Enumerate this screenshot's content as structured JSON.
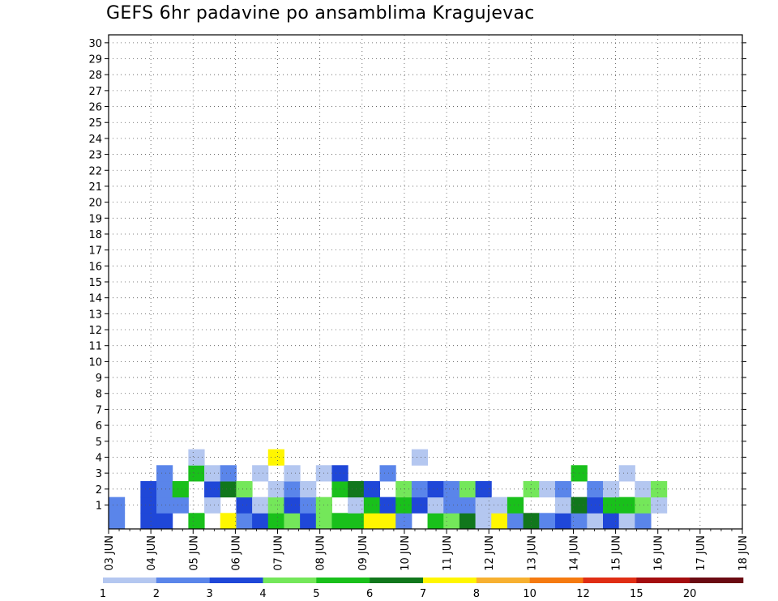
{
  "chart_data": {
    "type": "heatmap",
    "title": "GEFS 6hr padavine po ansamblima Kragujevac",
    "x_ticks": [
      "03 JUN",
      "04 JUN",
      "05 JUN",
      "06 JUN",
      "07 JUN",
      "08 JUN",
      "09 JUN",
      "10 JUN",
      "11 JUN",
      "12 JUN",
      "13 JUN",
      "14 JUN",
      "15 JUN",
      "16 JUN",
      "17 JUN",
      "18 JUN"
    ],
    "y_ticks": [
      1,
      2,
      3,
      4,
      5,
      6,
      7,
      8,
      9,
      10,
      11,
      12,
      13,
      14,
      15,
      16,
      17,
      18,
      19,
      20,
      21,
      22,
      23,
      24,
      25,
      26,
      27,
      28,
      29,
      30
    ],
    "y_range": [
      0,
      30
    ],
    "x_time_steps_per_day": 4,
    "grid": "dotted",
    "colorbar": {
      "labels": [
        "1",
        "2",
        "3",
        "4",
        "5",
        "6",
        "7",
        "8",
        "10",
        "12",
        "15",
        "20"
      ],
      "colors": [
        "#b4c7f0",
        "#5a85ea",
        "#1f47d8",
        "#74e75a",
        "#19c01b",
        "#11771c",
        "#fff600",
        "#f7b030",
        "#f57a10",
        "#e02e14",
        "#a40d0f",
        "#6a0a12"
      ]
    },
    "cells": [
      {
        "t": 0,
        "m": 0,
        "c": 1
      },
      {
        "t": 0,
        "m": 1,
        "c": 1
      },
      {
        "t": 2,
        "m": 0,
        "c": 2
      },
      {
        "t": 2,
        "m": 1,
        "c": 2
      },
      {
        "t": 2,
        "m": 2,
        "c": 2
      },
      {
        "t": 3,
        "m": 0,
        "c": 2
      },
      {
        "t": 3,
        "m": 1,
        "c": 1
      },
      {
        "t": 3,
        "m": 2,
        "c": 1
      },
      {
        "t": 3,
        "m": 3,
        "c": 1
      },
      {
        "t": 4,
        "m": 1,
        "c": 1
      },
      {
        "t": 4,
        "m": 2,
        "c": 4
      },
      {
        "t": 5,
        "m": 0,
        "c": 4
      },
      {
        "t": 5,
        "m": 3,
        "c": 4
      },
      {
        "t": 5,
        "m": 4,
        "c": 0
      },
      {
        "t": 6,
        "m": 1,
        "c": 0
      },
      {
        "t": 6,
        "m": 2,
        "c": 2
      },
      {
        "t": 6,
        "m": 3,
        "c": 0
      },
      {
        "t": 7,
        "m": 0,
        "c": 6
      },
      {
        "t": 7,
        "m": 2,
        "c": 5
      },
      {
        "t": 7,
        "m": 3,
        "c": 1
      },
      {
        "t": 8,
        "m": 0,
        "c": 1
      },
      {
        "t": 8,
        "m": 1,
        "c": 2
      },
      {
        "t": 8,
        "m": 2,
        "c": 3
      },
      {
        "t": 9,
        "m": 0,
        "c": 2
      },
      {
        "t": 9,
        "m": 1,
        "c": 0
      },
      {
        "t": 9,
        "m": 3,
        "c": 0
      },
      {
        "t": 10,
        "m": 0,
        "c": 4
      },
      {
        "t": 10,
        "m": 1,
        "c": 3
      },
      {
        "t": 10,
        "m": 2,
        "c": 0
      },
      {
        "t": 10,
        "m": 4,
        "c": 6
      },
      {
        "t": 11,
        "m": 0,
        "c": 3
      },
      {
        "t": 11,
        "m": 1,
        "c": 2
      },
      {
        "t": 11,
        "m": 2,
        "c": 1
      },
      {
        "t": 11,
        "m": 3,
        "c": 0
      },
      {
        "t": 12,
        "m": 0,
        "c": 2
      },
      {
        "t": 12,
        "m": 1,
        "c": 1
      },
      {
        "t": 12,
        "m": 2,
        "c": 0
      },
      {
        "t": 13,
        "m": 0,
        "c": 3
      },
      {
        "t": 13,
        "m": 1,
        "c": 3
      },
      {
        "t": 13,
        "m": 3,
        "c": 0
      },
      {
        "t": 14,
        "m": 0,
        "c": 4
      },
      {
        "t": 14,
        "m": 2,
        "c": 4
      },
      {
        "t": 14,
        "m": 3,
        "c": 2
      },
      {
        "t": 15,
        "m": 0,
        "c": 4
      },
      {
        "t": 15,
        "m": 1,
        "c": 0
      },
      {
        "t": 15,
        "m": 2,
        "c": 5
      },
      {
        "t": 16,
        "m": 0,
        "c": 6
      },
      {
        "t": 16,
        "m": 1,
        "c": 4
      },
      {
        "t": 16,
        "m": 2,
        "c": 2
      },
      {
        "t": 17,
        "m": 0,
        "c": 6
      },
      {
        "t": 17,
        "m": 1,
        "c": 2
      },
      {
        "t": 17,
        "m": 3,
        "c": 1
      },
      {
        "t": 18,
        "m": 0,
        "c": 1
      },
      {
        "t": 18,
        "m": 1,
        "c": 4
      },
      {
        "t": 18,
        "m": 2,
        "c": 3
      },
      {
        "t": 19,
        "m": 1,
        "c": 2
      },
      {
        "t": 19,
        "m": 2,
        "c": 1
      },
      {
        "t": 19,
        "m": 4,
        "c": 0
      },
      {
        "t": 20,
        "m": 0,
        "c": 4
      },
      {
        "t": 20,
        "m": 1,
        "c": 0
      },
      {
        "t": 20,
        "m": 2,
        "c": 2
      },
      {
        "t": 21,
        "m": 0,
        "c": 3
      },
      {
        "t": 21,
        "m": 1,
        "c": 1
      },
      {
        "t": 21,
        "m": 2,
        "c": 1
      },
      {
        "t": 22,
        "m": 0,
        "c": 5
      },
      {
        "t": 22,
        "m": 1,
        "c": 1
      },
      {
        "t": 22,
        "m": 2,
        "c": 3
      },
      {
        "t": 23,
        "m": 0,
        "c": 0
      },
      {
        "t": 23,
        "m": 1,
        "c": 0
      },
      {
        "t": 23,
        "m": 2,
        "c": 2
      },
      {
        "t": 24,
        "m": 0,
        "c": 6
      },
      {
        "t": 24,
        "m": 1,
        "c": 0
      },
      {
        "t": 25,
        "m": 0,
        "c": 1
      },
      {
        "t": 25,
        "m": 1,
        "c": 4
      },
      {
        "t": 26,
        "m": 0,
        "c": 5
      },
      {
        "t": 26,
        "m": 2,
        "c": 3
      },
      {
        "t": 27,
        "m": 0,
        "c": 1
      },
      {
        "t": 27,
        "m": 2,
        "c": 0
      },
      {
        "t": 28,
        "m": 0,
        "c": 2
      },
      {
        "t": 28,
        "m": 1,
        "c": 0
      },
      {
        "t": 28,
        "m": 2,
        "c": 1
      },
      {
        "t": 29,
        "m": 0,
        "c": 1
      },
      {
        "t": 29,
        "m": 1,
        "c": 5
      },
      {
        "t": 29,
        "m": 3,
        "c": 4
      },
      {
        "t": 30,
        "m": 0,
        "c": 0
      },
      {
        "t": 30,
        "m": 1,
        "c": 2
      },
      {
        "t": 30,
        "m": 2,
        "c": 1
      },
      {
        "t": 31,
        "m": 0,
        "c": 2
      },
      {
        "t": 31,
        "m": 1,
        "c": 4
      },
      {
        "t": 31,
        "m": 2,
        "c": 0
      },
      {
        "t": 32,
        "m": 0,
        "c": 0
      },
      {
        "t": 32,
        "m": 1,
        "c": 4
      },
      {
        "t": 32,
        "m": 3,
        "c": 0
      },
      {
        "t": 33,
        "m": 0,
        "c": 1
      },
      {
        "t": 33,
        "m": 1,
        "c": 3
      },
      {
        "t": 33,
        "m": 2,
        "c": 0
      },
      {
        "t": 34,
        "m": 1,
        "c": 0
      },
      {
        "t": 34,
        "m": 2,
        "c": 3
      }
    ]
  }
}
